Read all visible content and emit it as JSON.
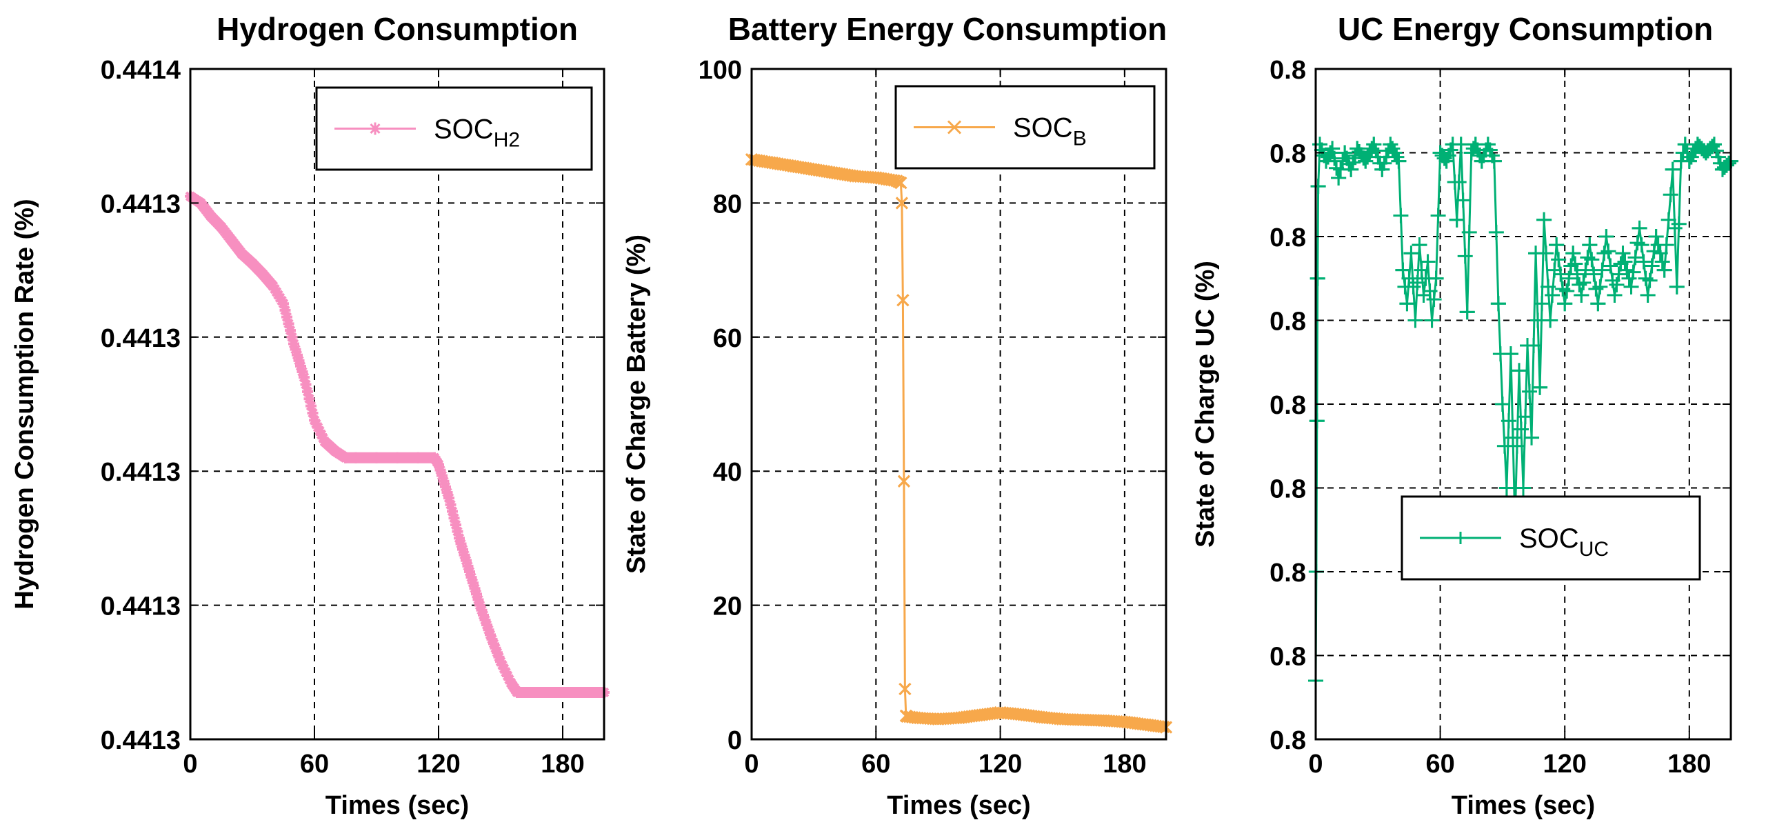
{
  "chart_data": [
    {
      "type": "line",
      "title": "Hydrogen Consumption",
      "xlabel": "Times (sec)",
      "ylabel": "Hydrogen Consumption Rate (%)",
      "xlim": [
        0,
        200
      ],
      "ylim": [
        0,
        5
      ],
      "xticks": [
        0,
        60,
        120,
        180
      ],
      "xtick_labels": [
        "0",
        "60",
        "120",
        "180"
      ],
      "yticks": [
        0,
        1,
        2,
        3,
        4,
        5
      ],
      "ytick_labels": [
        "0.4413",
        "0.4413",
        "0.4413",
        "0.4413",
        "0.4413",
        "0.4414"
      ],
      "grid": true,
      "legend_position": "top-right",
      "marker": "*",
      "series": [
        {
          "legend_text": "SOC",
          "legend_sub": "H2",
          "color": "#f78fc0",
          "x": [
            0,
            5,
            10,
            15,
            20,
            25,
            30,
            35,
            40,
            45,
            50,
            55,
            60,
            65,
            70,
            75,
            80,
            90,
            100,
            110,
            118,
            120,
            125,
            130,
            135,
            140,
            145,
            150,
            155,
            158,
            165,
            175,
            185,
            195,
            200
          ],
          "y": [
            4.05,
            4.0,
            3.9,
            3.82,
            3.72,
            3.62,
            3.55,
            3.47,
            3.38,
            3.25,
            2.95,
            2.7,
            2.38,
            2.22,
            2.15,
            2.1,
            2.1,
            2.1,
            2.1,
            2.1,
            2.1,
            2.05,
            1.8,
            1.5,
            1.25,
            1.0,
            0.78,
            0.58,
            0.42,
            0.35,
            0.35,
            0.35,
            0.35,
            0.35,
            0.35
          ]
        }
      ]
    },
    {
      "type": "line",
      "title": "Battery Energy Consumption",
      "xlabel": "Times (sec)",
      "ylabel": "State of Charge Battery (%)",
      "xlim": [
        0,
        200
      ],
      "ylim": [
        0,
        100
      ],
      "xticks": [
        0,
        60,
        120,
        180
      ],
      "xtick_labels": [
        "0",
        "60",
        "120",
        "180"
      ],
      "yticks": [
        0,
        20,
        40,
        60,
        80,
        100
      ],
      "ytick_labels": [
        "0",
        "20",
        "40",
        "60",
        "80",
        "100"
      ],
      "grid": true,
      "legend_position": "top-right",
      "marker": "x",
      "series": [
        {
          "legend_text": "SOC",
          "legend_sub": "B",
          "color": "#f7a84b",
          "x": [
            0,
            10,
            20,
            30,
            40,
            50,
            60,
            70,
            72,
            72.5,
            73,
            73.5,
            74,
            74.5,
            75,
            80,
            90,
            100,
            110,
            120,
            130,
            140,
            150,
            160,
            170,
            180,
            190,
            200
          ],
          "y": [
            86.5,
            86,
            85.5,
            85,
            84.5,
            84,
            83.8,
            83.3,
            83,
            80,
            65.5,
            38.5,
            7.5,
            3.5,
            3.4,
            3.2,
            3.0,
            3.2,
            3.6,
            4.0,
            3.7,
            3.3,
            3.0,
            2.9,
            2.8,
            2.6,
            2.2,
            1.8
          ]
        }
      ]
    },
    {
      "type": "line",
      "title": "UC Energy Consumption",
      "xlabel": "Times (sec)",
      "ylabel": "State of Charge UC (%)",
      "xlim": [
        0,
        200
      ],
      "ylim": [
        0,
        8
      ],
      "xticks": [
        0,
        60,
        120,
        180
      ],
      "xtick_labels": [
        "0",
        "60",
        "120",
        "180"
      ],
      "yticks": [
        0,
        1,
        2,
        3,
        4,
        5,
        6,
        7,
        8
      ],
      "ytick_labels": [
        "0.8",
        "0.8",
        "0.8",
        "0.8",
        "0.8",
        "0.8",
        "0.8",
        "0.8",
        "0.8"
      ],
      "grid": true,
      "legend_position": "center-right",
      "marker": "+",
      "series": [
        {
          "legend_text": "SOC",
          "legend_sub": "UC",
          "color": "#00b074",
          "x": [
            0,
            0.3,
            0.6,
            0.9,
            1.2,
            2,
            5,
            8,
            11,
            14,
            17,
            20,
            24,
            28,
            32,
            36,
            40,
            42,
            44,
            46,
            48,
            50,
            52,
            54,
            56,
            58,
            60,
            63,
            66,
            68,
            70,
            73,
            75,
            77,
            80,
            83,
            86,
            88,
            90,
            92,
            94,
            96,
            98,
            100,
            102,
            104,
            106,
            108,
            110,
            113,
            116,
            120,
            124,
            128,
            132,
            136,
            140,
            144,
            148,
            152,
            156,
            160,
            164,
            168,
            172,
            174,
            176,
            178,
            180,
            184,
            188,
            192,
            196,
            200
          ],
          "y": [
            0.7,
            2.0,
            3.8,
            5.5,
            6.6,
            7.1,
            6.9,
            7.05,
            6.7,
            7.0,
            6.8,
            7.05,
            6.9,
            7.1,
            6.8,
            7.1,
            6.9,
            5.6,
            5.2,
            5.8,
            5.0,
            5.9,
            5.3,
            5.7,
            5.0,
            5.5,
            7.0,
            6.9,
            7.1,
            6.2,
            7.1,
            5.1,
            7.0,
            7.1,
            6.9,
            7.1,
            6.9,
            5.2,
            4.0,
            3.0,
            4.6,
            2.6,
            4.4,
            3.0,
            4.7,
            3.6,
            5.8,
            4.2,
            6.2,
            5.0,
            5.9,
            5.2,
            5.8,
            5.3,
            5.9,
            5.2,
            6.0,
            5.3,
            5.8,
            5.4,
            6.1,
            5.3,
            6.0,
            5.6,
            6.8,
            5.4,
            6.9,
            7.1,
            6.9,
            7.1,
            7.0,
            7.1,
            6.8,
            6.9
          ]
        }
      ]
    }
  ]
}
